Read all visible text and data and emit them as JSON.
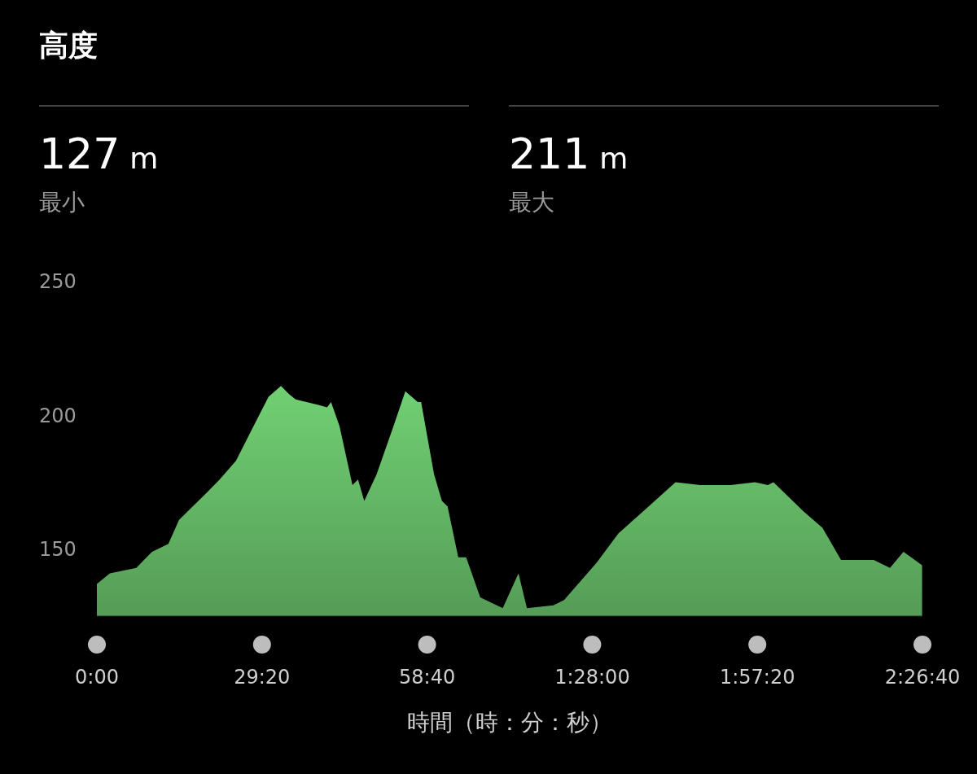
{
  "chart_data": {
    "type": "area",
    "title": "高度",
    "annotations": [
      "127 m",
      "最小",
      "211 m",
      "最大"
    ],
    "xlabel": "時間（時：分：秒）",
    "x": [
      0,
      2.3,
      7,
      9.8,
      12.7,
      14.6,
      18.5,
      21.8,
      24.7,
      27.6,
      30.5,
      32.7,
      34.1,
      35.3,
      39.2,
      40.9,
      41.6,
      43.1,
      45.4,
      46.4,
      47.5,
      49.7,
      52.7,
      54.8,
      57,
      57.6,
      59.9,
      61.3,
      62.3,
      64.2,
      65.6,
      68.1,
      72.1,
      74.9,
      76.4,
      81.1,
      83,
      88.8,
      92.7,
      97.5,
      102.8,
      107.2,
      112.6,
      116.9,
      119.2,
      120.2,
      125.6,
      128.9,
      132.2,
      138,
      140.9,
      143.3,
      146.6
    ],
    "series": [
      {
        "color": "#62b464",
        "values": [
          137,
          141,
          143,
          149,
          152,
          161,
          169,
          176,
          183,
          195,
          207,
          211,
          208,
          206,
          204,
          203,
          205,
          196,
          174,
          176,
          168,
          178,
          196,
          209,
          205,
          205,
          178,
          168,
          166,
          147,
          147,
          132,
          128,
          141,
          128,
          129,
          131,
          145,
          156,
          165,
          175,
          174,
          174,
          175,
          174,
          175,
          164,
          158,
          146,
          146,
          143,
          149,
          144
        ]
      }
    ],
    "xlim": [
      0,
      146.6667
    ],
    "xticks": [
      {
        "value": 0,
        "label": "0:00"
      },
      {
        "value": 29.3333,
        "label": "29:20"
      },
      {
        "value": 58.6667,
        "label": "58:40"
      },
      {
        "value": 88,
        "label": "1:28:00"
      },
      {
        "value": 117.3333,
        "label": "1:57:20"
      },
      {
        "value": 146.6667,
        "label": "2:26:40"
      }
    ],
    "ylim": [
      125,
      250
    ],
    "yticks": [
      150,
      200,
      250
    ],
    "grid": false
  }
}
